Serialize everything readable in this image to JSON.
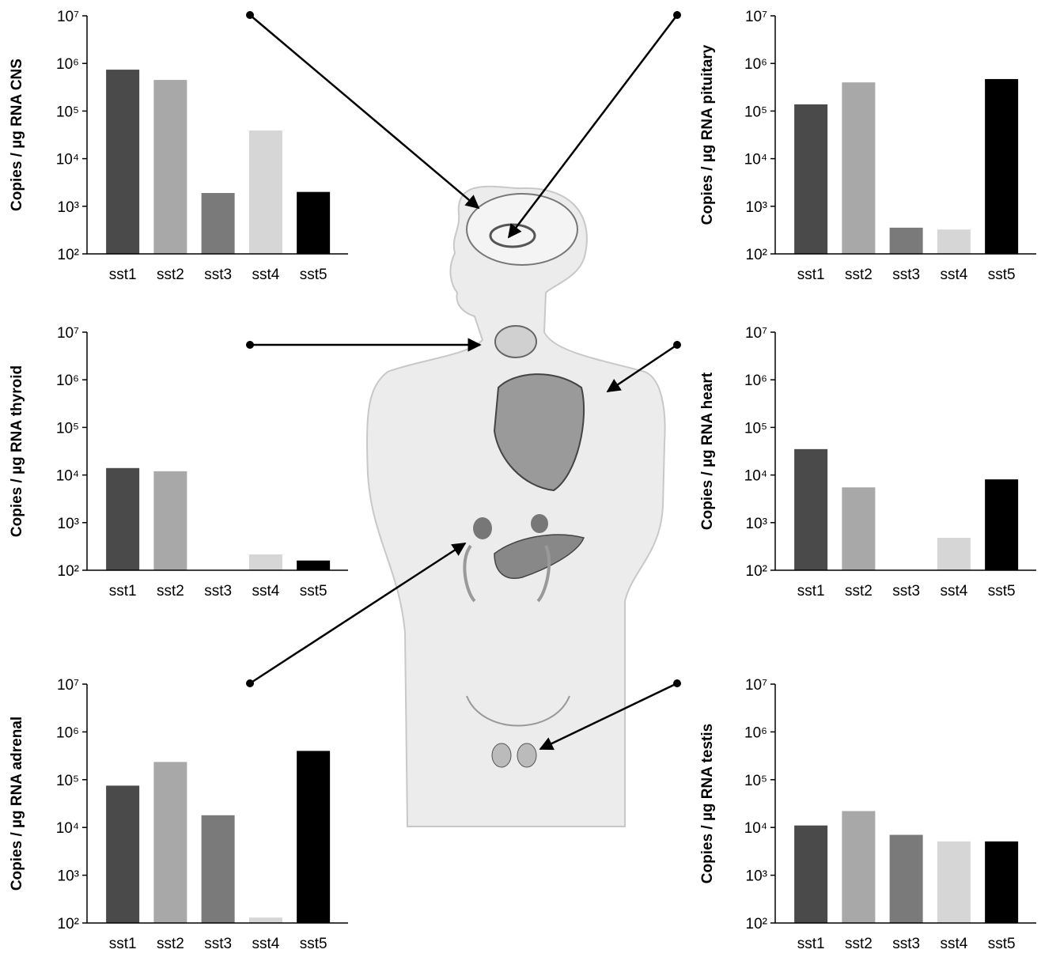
{
  "chart_data": [
    {
      "type": "bar",
      "y_label": "Copies / µg RNA CNS",
      "log_scale": true,
      "categories": [
        "sst1",
        "sst2",
        "sst3",
        "sst4",
        "sst5"
      ],
      "values": [
        740000,
        450000,
        1900,
        39000,
        2000
      ],
      "colors": [
        "#4a4a4a",
        "#a8a8a8",
        "#7a7a7a",
        "#d6d6d6",
        "#000000"
      ],
      "ylim": [
        100,
        10000000
      ],
      "yticks": [
        {
          "value": 100,
          "label": "10²"
        },
        {
          "value": 1000,
          "label": "10³"
        },
        {
          "value": 10000,
          "label": "10⁴"
        },
        {
          "value": 100000,
          "label": "10⁵"
        },
        {
          "value": 1000000,
          "label": "10⁶"
        },
        {
          "value": 10000000,
          "label": "10⁷"
        }
      ]
    },
    {
      "type": "bar",
      "y_label": "Copies / µg RNA pituitary",
      "log_scale": true,
      "categories": [
        "sst1",
        "sst2",
        "sst3",
        "sst4",
        "sst5"
      ],
      "values": [
        138000,
        400000,
        355,
        325,
        470000
      ],
      "colors": [
        "#4a4a4a",
        "#a8a8a8",
        "#7a7a7a",
        "#d6d6d6",
        "#000000"
      ],
      "ylim": [
        100,
        10000000
      ],
      "yticks": [
        {
          "value": 100,
          "label": "10²"
        },
        {
          "value": 1000,
          "label": "10³"
        },
        {
          "value": 10000,
          "label": "10⁴"
        },
        {
          "value": 100000,
          "label": "10⁵"
        },
        {
          "value": 1000000,
          "label": "10⁶"
        },
        {
          "value": 10000000,
          "label": "10⁷"
        }
      ]
    },
    {
      "type": "bar",
      "y_label": "Copies / µg RNA thyroid",
      "log_scale": true,
      "categories": [
        "sst1",
        "sst2",
        "sst3",
        "sst4",
        "sst5"
      ],
      "values": [
        14000,
        12000,
        null,
        215,
        160
      ],
      "colors": [
        "#4a4a4a",
        "#a8a8a8",
        "#7a7a7a",
        "#d6d6d6",
        "#000000"
      ],
      "ylim": [
        100,
        10000000
      ],
      "yticks": [
        {
          "value": 100,
          "label": "10²"
        },
        {
          "value": 1000,
          "label": "10³"
        },
        {
          "value": 10000,
          "label": "10⁴"
        },
        {
          "value": 100000,
          "label": "10⁵"
        },
        {
          "value": 1000000,
          "label": "10⁶"
        },
        {
          "value": 10000000,
          "label": "10⁷"
        }
      ]
    },
    {
      "type": "bar",
      "y_label": "Copies / µg RNA heart",
      "log_scale": true,
      "categories": [
        "sst1",
        "sst2",
        "sst3",
        "sst4",
        "sst5"
      ],
      "values": [
        35000,
        5500,
        null,
        480,
        8100
      ],
      "colors": [
        "#4a4a4a",
        "#a8a8a8",
        "#7a7a7a",
        "#d6d6d6",
        "#000000"
      ],
      "ylim": [
        100,
        10000000
      ],
      "yticks": [
        {
          "value": 100,
          "label": "10²"
        },
        {
          "value": 1000,
          "label": "10³"
        },
        {
          "value": 10000,
          "label": "10⁴"
        },
        {
          "value": 100000,
          "label": "10⁵"
        },
        {
          "value": 1000000,
          "label": "10⁶"
        },
        {
          "value": 10000000,
          "label": "10⁷"
        }
      ]
    },
    {
      "type": "bar",
      "y_label": "Copies / µg RNA adrenal",
      "log_scale": true,
      "categories": [
        "sst1",
        "sst2",
        "sst3",
        "sst4",
        "sst5"
      ],
      "values": [
        75000,
        235000,
        18000,
        130,
        400000
      ],
      "colors": [
        "#4a4a4a",
        "#a8a8a8",
        "#7a7a7a",
        "#d6d6d6",
        "#000000"
      ],
      "ylim": [
        100,
        10000000
      ],
      "yticks": [
        {
          "value": 100,
          "label": "10²"
        },
        {
          "value": 1000,
          "label": "10³"
        },
        {
          "value": 10000,
          "label": "10⁴"
        },
        {
          "value": 100000,
          "label": "10⁵"
        },
        {
          "value": 1000000,
          "label": "10⁶"
        },
        {
          "value": 10000000,
          "label": "10⁷"
        }
      ]
    },
    {
      "type": "bar",
      "y_label": "Copies / µg RNA testis",
      "log_scale": true,
      "categories": [
        "sst1",
        "sst2",
        "sst3",
        "sst4",
        "sst5"
      ],
      "values": [
        11000,
        22000,
        7000,
        5100,
        5100
      ],
      "colors": [
        "#4a4a4a",
        "#a8a8a8",
        "#7a7a7a",
        "#d6d6d6",
        "#000000"
      ],
      "ylim": [
        100,
        10000000
      ],
      "yticks": [
        {
          "value": 100,
          "label": "10²"
        },
        {
          "value": 1000,
          "label": "10³"
        },
        {
          "value": 10000,
          "label": "10⁴"
        },
        {
          "value": 100000,
          "label": "10⁵"
        },
        {
          "value": 1000000,
          "label": "10⁶"
        },
        {
          "value": 10000000,
          "label": "10⁷"
        }
      ]
    }
  ]
}
